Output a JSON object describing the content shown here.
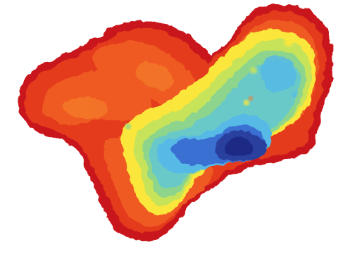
{
  "map": {
    "palette": {
      "outer_red": "#c8161c",
      "red": "#e43a1e",
      "orange_red": "#ef5a23",
      "orange": "#f47c2a",
      "yellow": "#fbe63a",
      "yellow_green": "#c7e35a",
      "green": "#8dd58d",
      "aqua": "#69c9c8",
      "sky": "#56b9e6",
      "blue": "#3b6fd3",
      "deep_blue": "#2a3f9e",
      "navy": "#1d2a86"
    }
  }
}
